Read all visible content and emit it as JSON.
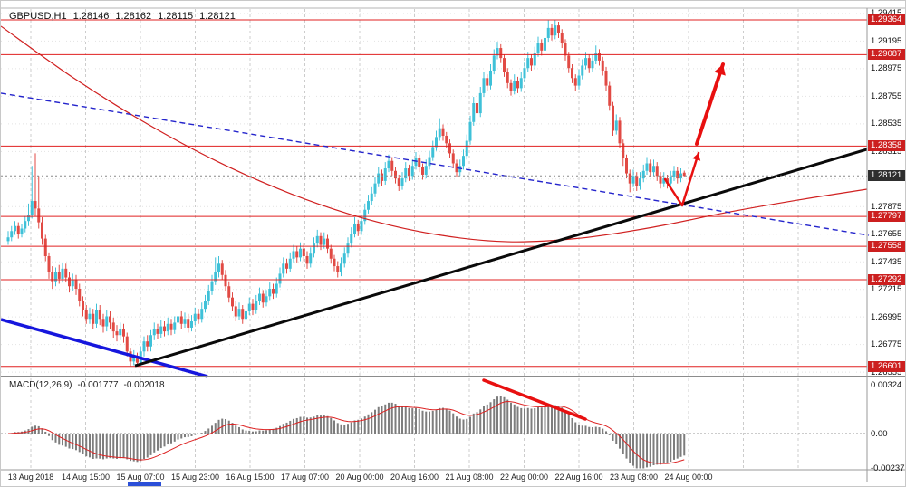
{
  "header": {
    "symbol_period": "GBPUSD,H1",
    "open": "1.28146",
    "high": "1.28162",
    "low": "1.28115",
    "close": "1.28121"
  },
  "colors": {
    "bull": "#3fc1d8",
    "bear": "#e14a44",
    "sr_line": "#e02020",
    "badge_red": "#cc1f1f",
    "badge_current": "#2e2e2e",
    "trend_black": "#0a0a0a",
    "trend_blue": "#1616dd",
    "dashed_blue": "#2424cc",
    "ma_curve": "#d02020",
    "arrow": "#e81010",
    "macd_bar": "#7d7d7d",
    "macd_signal": "#dd2222",
    "grid": "#cccccc",
    "axis_text": "#1a1a1a"
  },
  "price_axis": {
    "ticks": [
      "1.29415",
      "1.29195",
      "1.28975",
      "1.28755",
      "1.28535",
      "1.28315",
      "1.28095",
      "1.27875",
      "1.27655",
      "1.27435",
      "1.27215",
      "1.26995",
      "1.26775",
      "1.26555"
    ]
  },
  "time_axis": {
    "labels": [
      "13 Aug 2018",
      "14 Aug 15:00",
      "15 Aug 07:00",
      "15 Aug 23:00",
      "16 Aug 15:00",
      "17 Aug 07:00",
      "20 Aug 00:00",
      "20 Aug 16:00",
      "21 Aug 08:00",
      "22 Aug 00:00",
      "22 Aug 16:00",
      "23 Aug 08:00",
      "24 Aug 00:00"
    ]
  },
  "macd_panel": {
    "label": "MACD(12,26,9)",
    "value": "-0.001777",
    "signal_value": "-0.002018",
    "axis_ticks": [
      "0.00324",
      "0.00",
      "-0.00237"
    ]
  },
  "badges": {
    "sr": [
      "1.29364",
      "1.29087",
      "1.28358",
      "1.27797",
      "1.27558",
      "1.27292",
      "1.26601"
    ],
    "current": "1.28121"
  },
  "chart_data": {
    "type": "candlestick",
    "symbol": "GBPUSD",
    "timeframe": "H1",
    "title": "GBPUSD,H1",
    "price_range": {
      "top": 1.29458,
      "bottom": 1.26527
    },
    "sr_levels": [
      1.29364,
      1.29087,
      1.28358,
      1.27797,
      1.27558,
      1.27292,
      1.26601
    ],
    "current_price": 1.28121,
    "candles": [
      [
        1.276,
        1.2768,
        1.2757,
        1.2763
      ],
      [
        1.2763,
        1.2772,
        1.276,
        1.2768
      ],
      [
        1.2768,
        1.2776,
        1.2765,
        1.2772
      ],
      [
        1.2772,
        1.2775,
        1.2762,
        1.2766
      ],
      [
        1.2766,
        1.2774,
        1.2763,
        1.277
      ],
      [
        1.277,
        1.278,
        1.2767,
        1.2776
      ],
      [
        1.2776,
        1.279,
        1.2772,
        1.2781
      ],
      [
        1.2781,
        1.282,
        1.2778,
        1.2792
      ],
      [
        1.2792,
        1.283,
        1.278,
        1.2786
      ],
      [
        1.2786,
        1.2812,
        1.277,
        1.2775
      ],
      [
        1.2775,
        1.2779,
        1.2757,
        1.2762
      ],
      [
        1.2762,
        1.2765,
        1.2744,
        1.2748
      ],
      [
        1.2748,
        1.2751,
        1.273,
        1.2735
      ],
      [
        1.2735,
        1.274,
        1.2722,
        1.2728
      ],
      [
        1.2728,
        1.2739,
        1.2724,
        1.2735
      ],
      [
        1.2735,
        1.2741,
        1.2726,
        1.273
      ],
      [
        1.273,
        1.2743,
        1.2727,
        1.2738
      ],
      [
        1.2738,
        1.2742,
        1.2727,
        1.2731
      ],
      [
        1.2731,
        1.2735,
        1.2719,
        1.2724
      ],
      [
        1.2724,
        1.2734,
        1.272,
        1.2729
      ],
      [
        1.2729,
        1.2733,
        1.2717,
        1.2722
      ],
      [
        1.2722,
        1.2726,
        1.2708,
        1.2712
      ],
      [
        1.2712,
        1.2716,
        1.27,
        1.2705
      ],
      [
        1.2705,
        1.2709,
        1.2694,
        1.2698
      ],
      [
        1.2698,
        1.2707,
        1.2694,
        1.2702
      ],
      [
        1.2702,
        1.2706,
        1.269,
        1.2694
      ],
      [
        1.2694,
        1.271,
        1.2691,
        1.2705
      ],
      [
        1.2705,
        1.2709,
        1.2693,
        1.2698
      ],
      [
        1.2698,
        1.2702,
        1.2687,
        1.2692
      ],
      [
        1.2692,
        1.2705,
        1.2688,
        1.27
      ],
      [
        1.27,
        1.2704,
        1.269,
        1.2695
      ],
      [
        1.2695,
        1.2699,
        1.2683,
        1.2688
      ],
      [
        1.2688,
        1.2693,
        1.268,
        1.2685
      ],
      [
        1.2685,
        1.2695,
        1.2681,
        1.269
      ],
      [
        1.269,
        1.2694,
        1.2679,
        1.2684
      ],
      [
        1.2684,
        1.2687,
        1.2668,
        1.2672
      ],
      [
        1.2672,
        1.2675,
        1.26605,
        1.2664
      ],
      [
        1.2664,
        1.2673,
        1.2661,
        1.2668
      ],
      [
        1.2668,
        1.2671,
        1.266,
        1.2663
      ],
      [
        1.2663,
        1.2676,
        1.266,
        1.2672
      ],
      [
        1.2672,
        1.2684,
        1.2668,
        1.268
      ],
      [
        1.268,
        1.2685,
        1.2672,
        1.2676
      ],
      [
        1.2676,
        1.2689,
        1.2672,
        1.2685
      ],
      [
        1.2685,
        1.2695,
        1.2681,
        1.269
      ],
      [
        1.269,
        1.2694,
        1.2682,
        1.2686
      ],
      [
        1.2686,
        1.2697,
        1.2683,
        1.2692
      ],
      [
        1.2692,
        1.2696,
        1.2684,
        1.2688
      ],
      [
        1.2688,
        1.2699,
        1.2685,
        1.2694
      ],
      [
        1.2694,
        1.2698,
        1.2685,
        1.2689
      ],
      [
        1.2689,
        1.27,
        1.2686,
        1.2695
      ],
      [
        1.2695,
        1.2705,
        1.2692,
        1.27
      ],
      [
        1.27,
        1.2704,
        1.269,
        1.2694
      ],
      [
        1.2694,
        1.2703,
        1.2691,
        1.2698
      ],
      [
        1.2698,
        1.2702,
        1.2687,
        1.2691
      ],
      [
        1.2691,
        1.2701,
        1.2688,
        1.2696
      ],
      [
        1.2696,
        1.2707,
        1.2693,
        1.2702
      ],
      [
        1.2702,
        1.2706,
        1.2694,
        1.2698
      ],
      [
        1.2698,
        1.2711,
        1.2695,
        1.2706
      ],
      [
        1.2706,
        1.2717,
        1.2703,
        1.2712
      ],
      [
        1.2712,
        1.2725,
        1.2709,
        1.272
      ],
      [
        1.272,
        1.2733,
        1.2717,
        1.2728
      ],
      [
        1.2728,
        1.2747,
        1.2725,
        1.2735
      ],
      [
        1.2735,
        1.2748,
        1.2731,
        1.2742
      ],
      [
        1.2742,
        1.2745,
        1.2729,
        1.2733
      ],
      [
        1.2733,
        1.2737,
        1.272,
        1.2724
      ],
      [
        1.2724,
        1.2728,
        1.2711,
        1.2715
      ],
      [
        1.2715,
        1.2719,
        1.2704,
        1.2708
      ],
      [
        1.2708,
        1.2712,
        1.2696,
        1.27
      ],
      [
        1.27,
        1.2711,
        1.2697,
        1.2706
      ],
      [
        1.2706,
        1.2709,
        1.2694,
        1.2698
      ],
      [
        1.2698,
        1.2709,
        1.2695,
        1.2704
      ],
      [
        1.2704,
        1.2715,
        1.2701,
        1.271
      ],
      [
        1.271,
        1.2714,
        1.2701,
        1.2705
      ],
      [
        1.2705,
        1.2717,
        1.2702,
        1.2712
      ],
      [
        1.2712,
        1.2723,
        1.2709,
        1.2718
      ],
      [
        1.2718,
        1.2721,
        1.2707,
        1.2711
      ],
      [
        1.2711,
        1.2721,
        1.2708,
        1.2716
      ],
      [
        1.2716,
        1.2727,
        1.2713,
        1.2722
      ],
      [
        1.2722,
        1.2726,
        1.2714,
        1.2718
      ],
      [
        1.2718,
        1.2731,
        1.2715,
        1.2726
      ],
      [
        1.2726,
        1.2739,
        1.2723,
        1.2734
      ],
      [
        1.2734,
        1.2747,
        1.2731,
        1.2742
      ],
      [
        1.2742,
        1.2746,
        1.2734,
        1.2738
      ],
      [
        1.2738,
        1.2751,
        1.2735,
        1.2746
      ],
      [
        1.2746,
        1.2757,
        1.2743,
        1.2752
      ],
      [
        1.2752,
        1.2756,
        1.2743,
        1.2747
      ],
      [
        1.2747,
        1.2759,
        1.2744,
        1.2754
      ],
      [
        1.2754,
        1.2758,
        1.2744,
        1.2748
      ],
      [
        1.2748,
        1.2752,
        1.2738,
        1.2742
      ],
      [
        1.2742,
        1.2755,
        1.2739,
        1.275
      ],
      [
        1.275,
        1.2763,
        1.2747,
        1.2758
      ],
      [
        1.2758,
        1.2769,
        1.2755,
        1.2764
      ],
      [
        1.2764,
        1.2767,
        1.2753,
        1.2757
      ],
      [
        1.2757,
        1.2767,
        1.2754,
        1.2762
      ],
      [
        1.2762,
        1.2765,
        1.275,
        1.2754
      ],
      [
        1.2754,
        1.2757,
        1.2742,
        1.2746
      ],
      [
        1.2746,
        1.2749,
        1.2736,
        1.274
      ],
      [
        1.274,
        1.2744,
        1.2731,
        1.2735
      ],
      [
        1.2735,
        1.2747,
        1.2732,
        1.2742
      ],
      [
        1.2742,
        1.2755,
        1.2739,
        1.275
      ],
      [
        1.275,
        1.2763,
        1.2747,
        1.2758
      ],
      [
        1.2758,
        1.2771,
        1.2755,
        1.2766
      ],
      [
        1.2766,
        1.2779,
        1.2763,
        1.2774
      ],
      [
        1.2774,
        1.2777,
        1.2764,
        1.2768
      ],
      [
        1.2768,
        1.2781,
        1.2765,
        1.2776
      ],
      [
        1.2776,
        1.279,
        1.2773,
        1.2785
      ],
      [
        1.2785,
        1.2797,
        1.2782,
        1.2792
      ],
      [
        1.2792,
        1.2803,
        1.2789,
        1.2798
      ],
      [
        1.2798,
        1.2811,
        1.2795,
        1.2806
      ],
      [
        1.2806,
        1.2819,
        1.2803,
        1.2814
      ],
      [
        1.2814,
        1.2817,
        1.2804,
        1.2808
      ],
      [
        1.2808,
        1.2823,
        1.2805,
        1.2818
      ],
      [
        1.2818,
        1.2829,
        1.2815,
        1.2824
      ],
      [
        1.2824,
        1.2827,
        1.2812,
        1.2816
      ],
      [
        1.2816,
        1.2819,
        1.2806,
        1.281
      ],
      [
        1.281,
        1.2813,
        1.28,
        1.2804
      ],
      [
        1.2804,
        1.2815,
        1.2801,
        1.281
      ],
      [
        1.281,
        1.2823,
        1.2807,
        1.2818
      ],
      [
        1.2818,
        1.2821,
        1.2808,
        1.2812
      ],
      [
        1.2812,
        1.2825,
        1.2809,
        1.282
      ],
      [
        1.282,
        1.2831,
        1.2817,
        1.2826
      ],
      [
        1.2826,
        1.2829,
        1.2815,
        1.2819
      ],
      [
        1.2819,
        1.2822,
        1.2809,
        1.2813
      ],
      [
        1.2813,
        1.2825,
        1.281,
        1.282
      ],
      [
        1.282,
        1.2832,
        1.2817,
        1.2827
      ],
      [
        1.2827,
        1.284,
        1.2824,
        1.2835
      ],
      [
        1.2835,
        1.2848,
        1.2832,
        1.2843
      ],
      [
        1.2843,
        1.2858,
        1.284,
        1.285
      ],
      [
        1.285,
        1.2853,
        1.284,
        1.2844
      ],
      [
        1.2844,
        1.2847,
        1.2834,
        1.2838
      ],
      [
        1.2838,
        1.2841,
        1.2826,
        1.283
      ],
      [
        1.283,
        1.2833,
        1.2818,
        1.2822
      ],
      [
        1.2822,
        1.2825,
        1.2811,
        1.2815
      ],
      [
        1.2815,
        1.2825,
        1.2812,
        1.282
      ],
      [
        1.282,
        1.2833,
        1.2817,
        1.2828
      ],
      [
        1.2828,
        1.2845,
        1.2825,
        1.284
      ],
      [
        1.284,
        1.286,
        1.2837,
        1.2855
      ],
      [
        1.2855,
        1.2875,
        1.2852,
        1.287
      ],
      [
        1.287,
        1.2873,
        1.2858,
        1.2862
      ],
      [
        1.2862,
        1.2883,
        1.2859,
        1.2878
      ],
      [
        1.2878,
        1.2895,
        1.2875,
        1.289
      ],
      [
        1.289,
        1.2893,
        1.288,
        1.2884
      ],
      [
        1.2884,
        1.2901,
        1.2881,
        1.2896
      ],
      [
        1.2896,
        1.2913,
        1.2893,
        1.2908
      ],
      [
        1.2908,
        1.2919,
        1.2905,
        1.2914
      ],
      [
        1.2914,
        1.2917,
        1.2902,
        1.2906
      ],
      [
        1.2906,
        1.2909,
        1.2891,
        1.2895
      ],
      [
        1.2895,
        1.2898,
        1.2882,
        1.2886
      ],
      [
        1.2886,
        1.2889,
        1.2876,
        1.288
      ],
      [
        1.288,
        1.2893,
        1.2877,
        1.2888
      ],
      [
        1.2888,
        1.2891,
        1.2878,
        1.2882
      ],
      [
        1.2882,
        1.2895,
        1.2879,
        1.289
      ],
      [
        1.289,
        1.2903,
        1.2887,
        1.2898
      ],
      [
        1.2898,
        1.2911,
        1.2895,
        1.2906
      ],
      [
        1.2906,
        1.2909,
        1.2896,
        1.29
      ],
      [
        1.29,
        1.2915,
        1.2897,
        1.291
      ],
      [
        1.291,
        1.2923,
        1.2907,
        1.2918
      ],
      [
        1.2918,
        1.2921,
        1.2908,
        1.2912
      ],
      [
        1.2912,
        1.2927,
        1.2909,
        1.2922
      ],
      [
        1.2922,
        1.2936,
        1.2919,
        1.293
      ],
      [
        1.293,
        1.2933,
        1.292,
        1.2924
      ],
      [
        1.2924,
        1.29364,
        1.2921,
        1.2932
      ],
      [
        1.2932,
        1.2935,
        1.2922,
        1.2926
      ],
      [
        1.2926,
        1.2929,
        1.2914,
        1.2918
      ],
      [
        1.2918,
        1.2921,
        1.2904,
        1.2908
      ],
      [
        1.2908,
        1.2911,
        1.2894,
        1.2898
      ],
      [
        1.2898,
        1.2901,
        1.2886,
        1.289
      ],
      [
        1.289,
        1.2893,
        1.288,
        1.2884
      ],
      [
        1.2884,
        1.2897,
        1.2881,
        1.2892
      ],
      [
        1.2892,
        1.2905,
        1.2889,
        1.29
      ],
      [
        1.29,
        1.2911,
        1.2897,
        1.2906
      ],
      [
        1.2906,
        1.2909,
        1.2894,
        1.2898
      ],
      [
        1.2898,
        1.2909,
        1.2895,
        1.2904
      ],
      [
        1.2904,
        1.2916,
        1.2901,
        1.291
      ],
      [
        1.291,
        1.2913,
        1.29,
        1.2904
      ],
      [
        1.2904,
        1.2907,
        1.2892,
        1.2896
      ],
      [
        1.2896,
        1.2899,
        1.288,
        1.2884
      ],
      [
        1.2884,
        1.2887,
        1.2864,
        1.2868
      ],
      [
        1.2868,
        1.2871,
        1.2844,
        1.2848
      ],
      [
        1.2848,
        1.2861,
        1.2845,
        1.2856
      ],
      [
        1.2856,
        1.2859,
        1.2834,
        1.2838
      ],
      [
        1.2838,
        1.2841,
        1.282,
        1.2826
      ],
      [
        1.2826,
        1.2829,
        1.281,
        1.2814
      ],
      [
        1.2814,
        1.2817,
        1.2799,
        1.2806
      ],
      [
        1.2806,
        1.2817,
        1.2803,
        1.2812
      ],
      [
        1.2812,
        1.2815,
        1.28,
        1.2804
      ],
      [
        1.2804,
        1.2815,
        1.2801,
        1.281
      ],
      [
        1.281,
        1.2821,
        1.2807,
        1.2816
      ],
      [
        1.2816,
        1.2827,
        1.2813,
        1.2822
      ],
      [
        1.2822,
        1.2825,
        1.2811,
        1.2815
      ],
      [
        1.2815,
        1.2825,
        1.2812,
        1.282
      ],
      [
        1.282,
        1.2823,
        1.2808,
        1.2812
      ],
      [
        1.2812,
        1.2815,
        1.2802,
        1.2806
      ],
      [
        1.2806,
        1.2815,
        1.2803,
        1.281
      ],
      [
        1.281,
        1.2813,
        1.2802,
        1.2806
      ],
      [
        1.2806,
        1.2816,
        1.2803,
        1.2811
      ],
      [
        1.2811,
        1.282,
        1.2808,
        1.2816
      ],
      [
        1.2816,
        1.2819,
        1.2806,
        1.281
      ],
      [
        1.281,
        1.2818,
        1.2807,
        1.2814
      ],
      [
        1.28146,
        1.28162,
        1.28115,
        1.28121
      ]
    ],
    "overlays": {
      "black_trendline": {
        "points": [
          [
            148,
            1.26606
          ],
          [
            956,
            1.28332
          ]
        ]
      },
      "blue_trendline": {
        "points": [
          [
            0,
            1.26975
          ],
          [
            228,
            1.2652
          ]
        ]
      },
      "blue_dashed_line": {
        "points": [
          [
            0,
            1.2878
          ],
          [
            958,
            1.27646
          ]
        ]
      },
      "red_ma_curve": {
        "points": [
          [
            0,
            1.29314
          ],
          [
            80,
            1.28902
          ],
          [
            160,
            1.28541
          ],
          [
            240,
            1.28231
          ],
          [
            320,
            1.27978
          ],
          [
            400,
            1.27783
          ],
          [
            480,
            1.27653
          ],
          [
            560,
            1.27595
          ],
          [
            640,
            1.27624
          ],
          [
            720,
            1.27711
          ],
          [
            800,
            1.27827
          ],
          [
            880,
            1.27928
          ],
          [
            956,
            1.28014
          ]
        ]
      }
    },
    "annotations": {
      "price_arrow_small": [
        [
          733,
          197
        ],
        [
          752,
          226
        ],
        [
          770,
          168
        ]
      ],
      "price_arrow_big": [
        [
          768,
          158
        ],
        [
          797,
          70
        ]
      ],
      "macd_downtrend_segment": [
        [
          533,
          419
        ],
        [
          645,
          462
        ]
      ]
    },
    "macd_params": [
      12,
      26,
      9
    ],
    "macd_scale": {
      "top_value": 0.00366,
      "bottom_value": -0.00234
    },
    "macd_axis_values": [
      0.00324,
      0,
      -0.00237
    ]
  }
}
